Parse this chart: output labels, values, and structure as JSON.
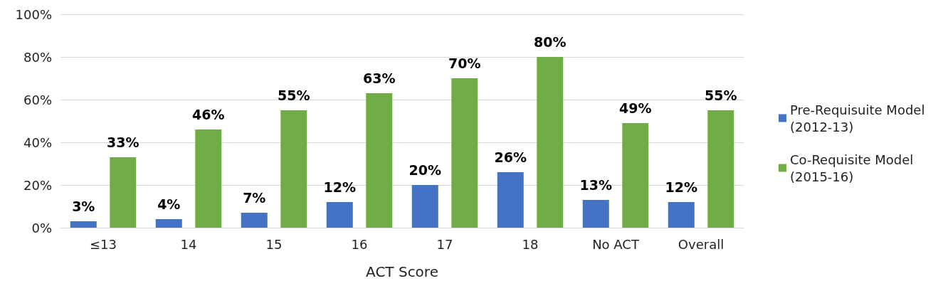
{
  "chart_data": {
    "type": "bar",
    "xlabel": "ACT Score",
    "categories": [
      "≤13",
      "14",
      "15",
      "16",
      "17",
      "18",
      "No ACT",
      "Overall"
    ],
    "series": [
      {
        "name": "Pre-Requisuite Model (2012-13)",
        "color": "#4472c4",
        "values": [
          3,
          4,
          7,
          12,
          20,
          26,
          13,
          12
        ],
        "value_labels": [
          "3%",
          "4%",
          "7%",
          "12%",
          "20%",
          "26%",
          "13%",
          "12%"
        ]
      },
      {
        "name": "Co-Requisite Model (2015-16)",
        "color": "#70ad47",
        "values": [
          33,
          46,
          55,
          63,
          70,
          80,
          49,
          55
        ],
        "value_labels": [
          "33%",
          "46%",
          "55%",
          "63%",
          "70%",
          "80%",
          "49%",
          "55%"
        ]
      }
    ],
    "ylim": [
      0,
      100
    ],
    "yticks": [
      {
        "value": 0,
        "label": "0%"
      },
      {
        "value": 20,
        "label": "20%"
      },
      {
        "value": 40,
        "label": "40%"
      },
      {
        "value": 60,
        "label": "60%"
      },
      {
        "value": 80,
        "label": "80%"
      },
      {
        "value": 100,
        "label": "100%"
      }
    ],
    "grid": "y",
    "legend": "right"
  }
}
